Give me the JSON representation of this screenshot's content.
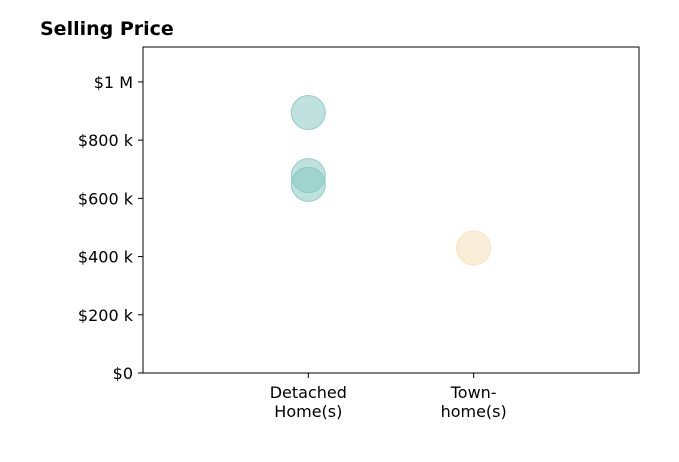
{
  "chart_data": {
    "type": "scatter",
    "title": "Selling Price",
    "xlabel": "",
    "ylabel": "",
    "categories": [
      [
        "Detached",
        "Home(s)"
      ],
      [
        "Town-",
        "home(s)"
      ]
    ],
    "x_range": [
      -1,
      2
    ],
    "ylim": [
      0,
      1120000
    ],
    "y_ticks": [
      {
        "value": 0,
        "label": "$0"
      },
      {
        "value": 200000,
        "label": "$200 k"
      },
      {
        "value": 400000,
        "label": "$400 k"
      },
      {
        "value": 600000,
        "label": "$600 k"
      },
      {
        "value": 800000,
        "label": "$800 k"
      },
      {
        "value": 1000000,
        "label": "$1 M"
      }
    ],
    "points": [
      {
        "category": 0,
        "value": 895000,
        "color": "#80c5bd"
      },
      {
        "category": 0,
        "value": 678000,
        "color": "#80c5bd"
      },
      {
        "category": 0,
        "value": 648000,
        "color": "#80c5bd"
      },
      {
        "category": 1,
        "value": 430000,
        "color": "#f5deb3"
      }
    ],
    "marker_opacity": 0.5,
    "grid": false,
    "legend": "none"
  }
}
